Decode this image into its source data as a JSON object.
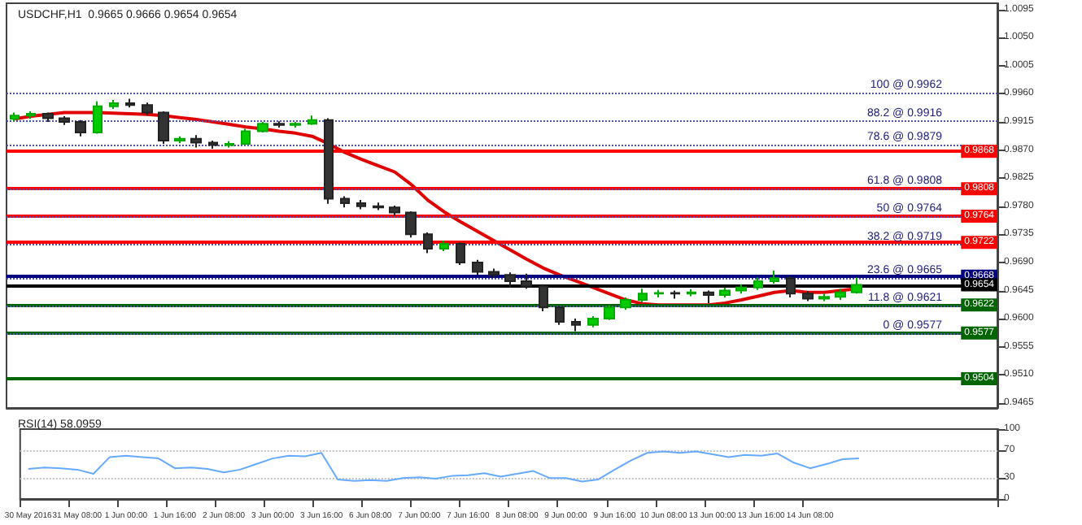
{
  "chart_data": [
    {
      "type": "candlestick",
      "title": "USDCHF,H1  0.9665 0.9666 0.9654 0.9654",
      "categories": [
        null,
        null,
        null,
        null,
        null,
        null,
        null,
        null,
        null,
        null,
        null,
        null,
        null,
        null,
        null,
        null,
        null,
        null,
        null,
        null,
        null,
        null,
        null,
        null,
        null,
        null,
        null,
        null,
        null,
        null,
        null,
        null,
        null,
        null,
        null,
        null,
        null,
        null,
        null,
        null,
        null,
        null,
        null,
        null,
        null,
        null,
        null,
        null,
        null,
        null,
        null,
        null
      ],
      "ohlc": [
        [
          0.992,
          0.993,
          0.9916,
          0.9925
        ],
        [
          0.9925,
          0.9932,
          0.992,
          0.9928
        ],
        [
          0.9928,
          0.993,
          0.9915,
          0.9921
        ],
        [
          0.9921,
          0.9924,
          0.991,
          0.9915
        ],
        [
          0.9915,
          0.9918,
          0.9892,
          0.9898
        ],
        [
          0.9898,
          0.9948,
          0.9896,
          0.994
        ],
        [
          0.994,
          0.995,
          0.9936,
          0.9945
        ],
        [
          0.9945,
          0.9952,
          0.9938,
          0.9942
        ],
        [
          0.9942,
          0.9946,
          0.9926,
          0.993
        ],
        [
          0.993,
          0.9932,
          0.988,
          0.9885
        ],
        [
          0.9885,
          0.9892,
          0.9881,
          0.9888
        ],
        [
          0.9888,
          0.9894,
          0.9874,
          0.9882
        ],
        [
          0.9882,
          0.9885,
          0.9872,
          0.9878
        ],
        [
          0.9878,
          0.9884,
          0.9874,
          0.988
        ],
        [
          0.988,
          0.9904,
          0.9878,
          0.99
        ],
        [
          0.99,
          0.9915,
          0.9898,
          0.9912
        ],
        [
          0.9912,
          0.9916,
          0.9906,
          0.991
        ],
        [
          0.991,
          0.9915,
          0.9906,
          0.9912
        ],
        [
          0.9912,
          0.9925,
          0.991,
          0.9918
        ],
        [
          0.9918,
          0.9921,
          0.9784,
          0.9792
        ],
        [
          0.9792,
          0.9796,
          0.9778,
          0.9785
        ],
        [
          0.9785,
          0.979,
          0.9775,
          0.978
        ],
        [
          0.978,
          0.9786,
          0.9774,
          0.9778
        ],
        [
          0.9778,
          0.9781,
          0.9765,
          0.977
        ],
        [
          0.977,
          0.9772,
          0.973,
          0.9735
        ],
        [
          0.9735,
          0.9738,
          0.9705,
          0.9712
        ],
        [
          0.9712,
          0.9725,
          0.9708,
          0.972
        ],
        [
          0.972,
          0.9722,
          0.9686,
          0.969
        ],
        [
          0.969,
          0.9694,
          0.967,
          0.9675
        ],
        [
          0.9675,
          0.968,
          0.9666,
          0.967
        ],
        [
          0.967,
          0.9674,
          0.965,
          0.966
        ],
        [
          0.966,
          0.9672,
          0.9648,
          0.9652
        ],
        [
          0.9652,
          0.9655,
          0.9612,
          0.9618
        ],
        [
          0.9618,
          0.962,
          0.959,
          0.9595
        ],
        [
          0.9595,
          0.96,
          0.958,
          0.959
        ],
        [
          0.959,
          0.9604,
          0.9586,
          0.96
        ],
        [
          0.96,
          0.9622,
          0.9598,
          0.9618
        ],
        [
          0.9618,
          0.9634,
          0.9614,
          0.963
        ],
        [
          0.963,
          0.9648,
          0.9626,
          0.964
        ],
        [
          0.964,
          0.9646,
          0.9634,
          0.9641
        ],
        [
          0.9641,
          0.9645,
          0.9632,
          0.964
        ],
        [
          0.964,
          0.9647,
          0.9636,
          0.9642
        ],
        [
          0.9642,
          0.9645,
          0.9625,
          0.9638
        ],
        [
          0.9638,
          0.965,
          0.9634,
          0.9645
        ],
        [
          0.9645,
          0.9655,
          0.964,
          0.965
        ],
        [
          0.965,
          0.9666,
          0.9646,
          0.966
        ],
        [
          0.966,
          0.9677,
          0.9656,
          0.9665
        ],
        [
          0.9665,
          0.9668,
          0.9634,
          0.964
        ],
        [
          0.964,
          0.9644,
          0.9628,
          0.9632
        ],
        [
          0.9632,
          0.964,
          0.9628,
          0.9635
        ],
        [
          0.9635,
          0.9648,
          0.963,
          0.9642
        ],
        [
          0.9642,
          0.9666,
          0.964,
          0.9654
        ]
      ],
      "series": [
        {
          "type": "line",
          "color": "#e00000",
          "values": [
            0.992,
            0.9924,
            0.9927,
            0.993,
            0.993,
            0.993,
            0.9929,
            0.9928,
            0.9927,
            0.9925,
            0.9922,
            0.9919,
            0.9915,
            0.9911,
            0.9907,
            0.9904,
            0.99,
            0.9897,
            0.9892,
            0.988,
            0.9866,
            0.9855,
            0.9845,
            0.9835,
            0.9815,
            0.979,
            0.9771,
            0.9755,
            0.974,
            0.9725,
            0.971,
            0.9695,
            0.9681,
            0.967,
            0.966,
            0.965,
            0.964,
            0.963,
            0.9624,
            0.9622,
            0.9622,
            0.9622,
            0.9622,
            0.9625,
            0.963,
            0.9636,
            0.9642,
            0.9645,
            0.9642,
            0.9642,
            0.9645,
            0.9648
          ]
        }
      ],
      "ylim": [
        0.9457,
        1.0105
      ],
      "yticks": [
        0.9465,
        {
          "value": 0.951,
          "label": "0.9510"
        },
        0.9555,
        {
          "value": 0.96,
          "label": "0.9600"
        },
        0.9645,
        {
          "value": 0.969,
          "label": "0.9690"
        },
        0.9735,
        {
          "value": 0.978,
          "label": "0.9780"
        },
        0.9825,
        {
          "value": 0.987,
          "label": "0.9870"
        },
        0.9915,
        {
          "value": 0.996,
          "label": "0.9960"
        },
        1.0005,
        {
          "value": 1.005,
          "label": "1.0050"
        },
        1.0095
      ],
      "ref_lines": [
        {
          "axis": "y",
          "value": 0.9868,
          "label": "0.9868",
          "color": "#ff0000",
          "line_style": "solid"
        },
        {
          "axis": "y",
          "value": 0.9808,
          "label": "0.9808",
          "color": "#ff0000",
          "line_style": "solid"
        },
        {
          "axis": "y",
          "value": 0.9764,
          "label": "0.9764",
          "color": "#ff0000",
          "line_style": "solid"
        },
        {
          "axis": "y",
          "value": 0.9722,
          "label": "0.9722",
          "color": "#ff0000",
          "line_style": "solid"
        },
        {
          "axis": "y",
          "value": 0.9668,
          "label": "0.9668",
          "color": "#000080",
          "line_style": "solid"
        },
        {
          "axis": "y",
          "value": 0.9654,
          "label": "0.9654",
          "color": "#000000",
          "line_style": "solid"
        },
        {
          "axis": "y",
          "value": 0.9622,
          "label": "0.9622",
          "color": "#006400",
          "line_style": "solid"
        },
        {
          "axis": "y",
          "value": 0.9577,
          "label": "0.9577",
          "color": "#006400",
          "line_style": "solid"
        },
        {
          "axis": "y",
          "value": 0.9504,
          "label": "0.9504",
          "color": "#006400",
          "line_style": "solid"
        },
        {
          "axis": "y",
          "value": 0.9962,
          "label": "100 @ 0.9962",
          "color": "#5050b0",
          "line_style": "dotted"
        },
        {
          "axis": "y",
          "value": 0.9916,
          "label": "88.2 @ 0.9916",
          "color": "#5050b0",
          "line_style": "dotted"
        },
        {
          "axis": "y",
          "value": 0.9879,
          "label": "78.6 @ 0.9879",
          "color": "#5050b0",
          "line_style": "dotted"
        },
        {
          "axis": "y",
          "value": 0.9808,
          "label": "61.8 @ 0.9808",
          "color": "#5050b0",
          "line_style": "dotted"
        },
        {
          "axis": "y",
          "value": 0.9764,
          "label": "50 @ 0.9764",
          "color": "#5050b0",
          "line_style": "dotted"
        },
        {
          "axis": "y",
          "value": 0.9719,
          "label": "38.2 @ 0.9719",
          "color": "#5050b0",
          "line_style": "dotted"
        },
        {
          "axis": "y",
          "value": 0.9665,
          "label": "23.6 @ 0.9665",
          "color": "#5050b0",
          "line_style": "dotted"
        },
        {
          "axis": "y",
          "value": 0.9621,
          "label": "11.8 @ 0.9621",
          "color": "#5050b0",
          "line_style": "dotted"
        },
        {
          "axis": "y",
          "value": 0.9577,
          "label": "0 @ 0.9577",
          "color": "#5050b0",
          "line_style": "dotted"
        }
      ],
      "tick_labels": "y",
      "grid": false
    },
    {
      "type": "line",
      "title": "RSI(14) 58.0959",
      "categories": [
        "30 May 2016",
        null,
        null,
        "31 May 08:00",
        null,
        null,
        "1 Jun 00:00",
        null,
        null,
        "1 Jun 16:00",
        null,
        null,
        "2 Jun 08:00",
        null,
        null,
        "3 Jun 00:00",
        null,
        null,
        "3 Jun 16:00",
        null,
        null,
        "6 Jun 08:00",
        null,
        null,
        "7 Jun 00:00",
        null,
        null,
        "7 Jun 16:00",
        null,
        null,
        "8 Jun 08:00",
        null,
        null,
        "9 Jun 00:00",
        null,
        null,
        "9 Jun 16:00",
        null,
        null,
        "10 Jun 08:00",
        null,
        null,
        "13 Jun 00:00",
        null,
        null,
        "13 Jun 16:00",
        null,
        null,
        "14 Jun 08:00",
        null,
        null,
        null
      ],
      "series": [
        {
          "color": "#66aaff",
          "values": [
            43,
            45,
            44,
            42,
            36,
            60,
            62,
            60,
            58,
            44,
            45,
            43,
            38,
            42,
            50,
            58,
            62,
            61,
            66,
            28,
            26,
            27,
            26,
            30,
            31,
            29,
            33,
            34,
            37,
            32,
            36,
            40,
            30,
            30,
            25,
            28,
            42,
            55,
            66,
            68,
            66,
            68,
            64,
            60,
            63,
            62,
            65,
            52,
            44,
            50,
            57,
            58
          ]
        }
      ],
      "ylim": [
        0,
        100
      ],
      "yticks": [
        0,
        30,
        70,
        100
      ],
      "ref_lines": [
        {
          "axis": "y",
          "value": 30,
          "color": "#c0c0c0",
          "line_style": "dotted"
        },
        {
          "axis": "y",
          "value": 70,
          "color": "#c0c0c0",
          "line_style": "dotted"
        }
      ],
      "marker": "none",
      "grid": false
    }
  ]
}
